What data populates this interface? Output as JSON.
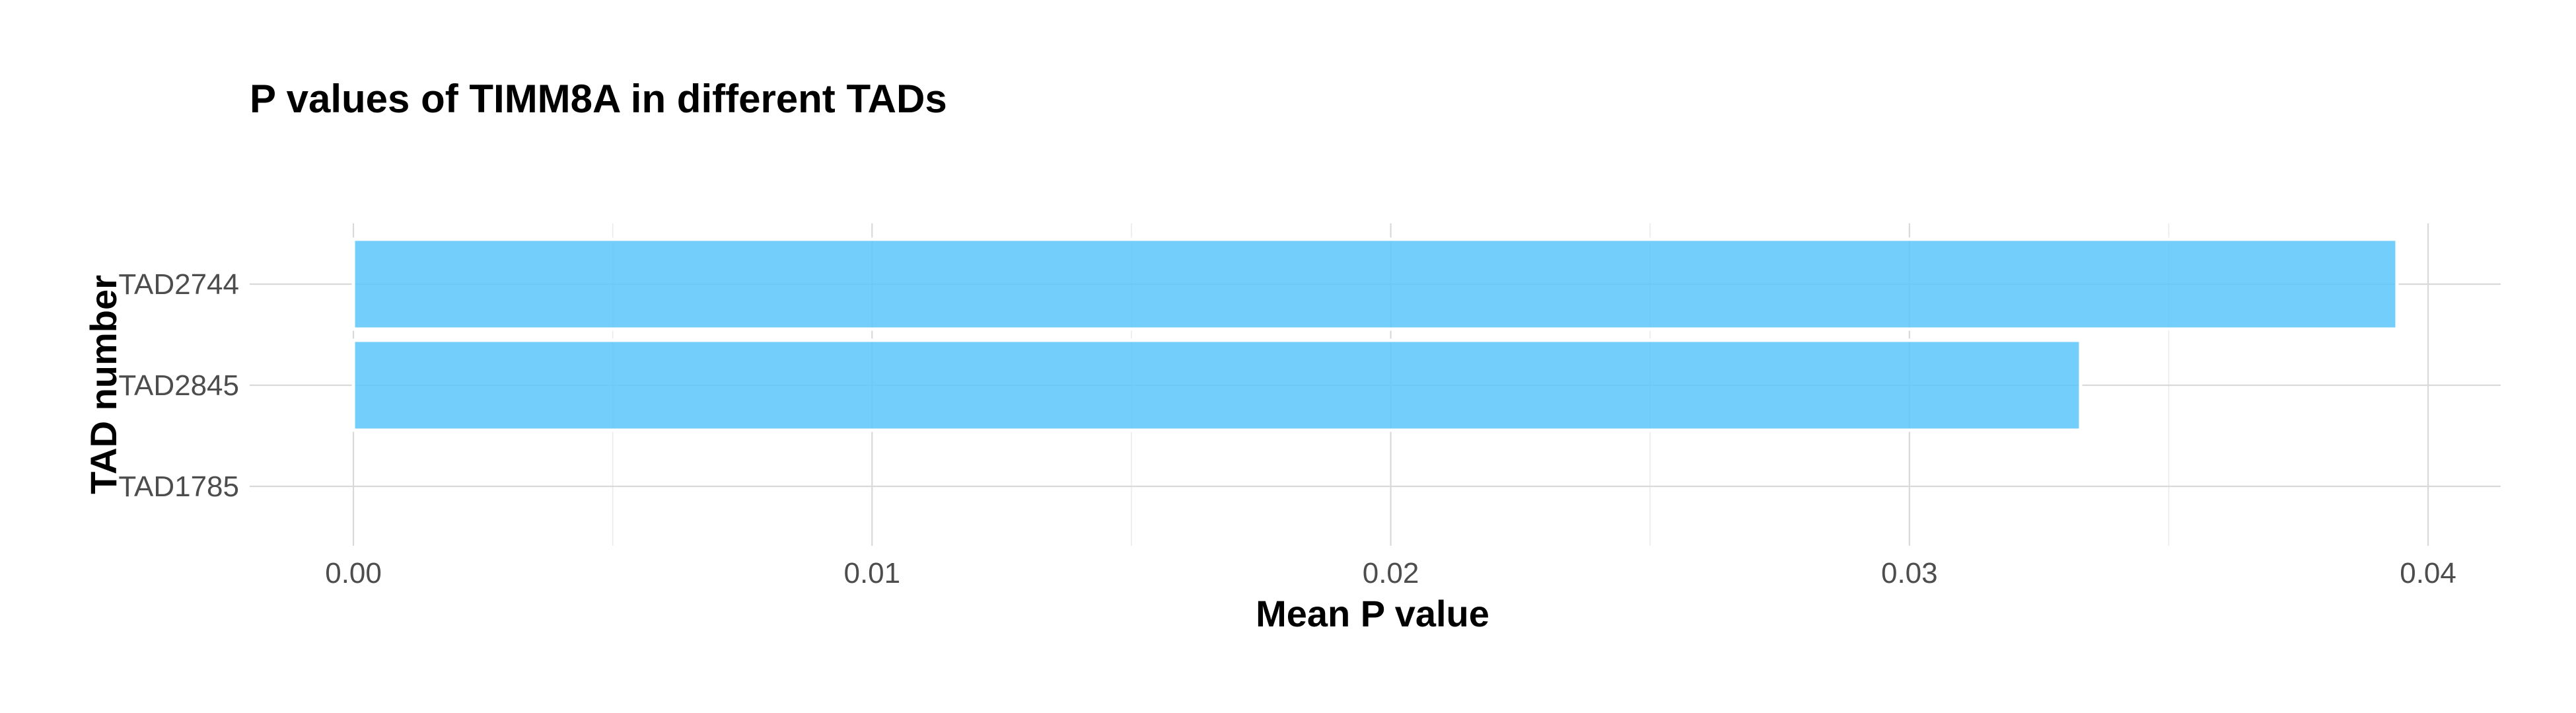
{
  "chart_data": {
    "type": "bar",
    "orientation": "horizontal",
    "title": "P values of TIMM8A in different TADs",
    "xlabel": "Mean P value",
    "ylabel": "TAD number",
    "categories": [
      "TAD2744",
      "TAD2845",
      "TAD1785"
    ],
    "values": [
      0.0394,
      0.0333,
      0
    ],
    "xlim": [
      -0.002,
      0.0414
    ],
    "xticks": [
      0,
      0.01,
      0.02,
      0.03,
      0.04
    ],
    "xtick_labels": [
      "0.00",
      "0.01",
      "0.02",
      "0.03",
      "0.04"
    ],
    "grid": true,
    "bar_color": "#5bc5fa",
    "bar_opacity": 0.85
  }
}
